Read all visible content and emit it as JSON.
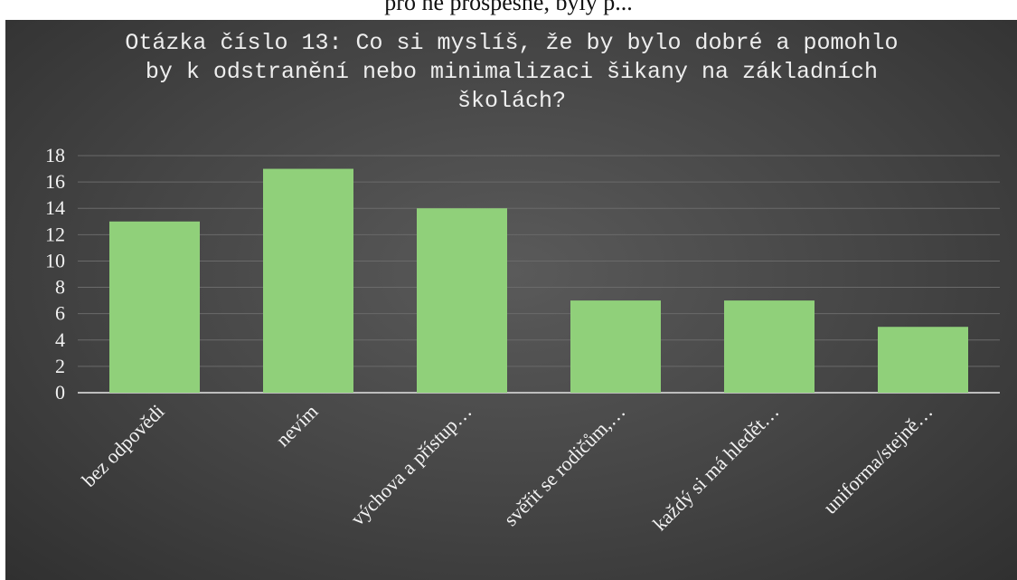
{
  "header_fragment": "pro ně prospěšné, byly p...",
  "chart_data": {
    "type": "bar",
    "title": "Otázka číslo 13: Co si myslíš, že by bylo dobré a pomohlo\nby k odstranění nebo minimalizaci šikany na základních\nškolách?",
    "categories": [
      "bez odpovědi",
      "nevím",
      "výchova a přístup…",
      "svěřit se rodičům,…",
      "každý si má hledět…",
      "uniforma/stejně…"
    ],
    "values": [
      13,
      17,
      14,
      7,
      7,
      5
    ],
    "ylim": [
      0,
      18
    ],
    "yticks": [
      0,
      2,
      4,
      6,
      8,
      10,
      12,
      14,
      16,
      18
    ],
    "grid": true,
    "xlabel": "",
    "ylabel": "",
    "colors": {
      "bar": "#90d07a",
      "grid": "#6a6a6a",
      "axis": "#bdbdbd",
      "text": "#f2f2f2"
    }
  }
}
